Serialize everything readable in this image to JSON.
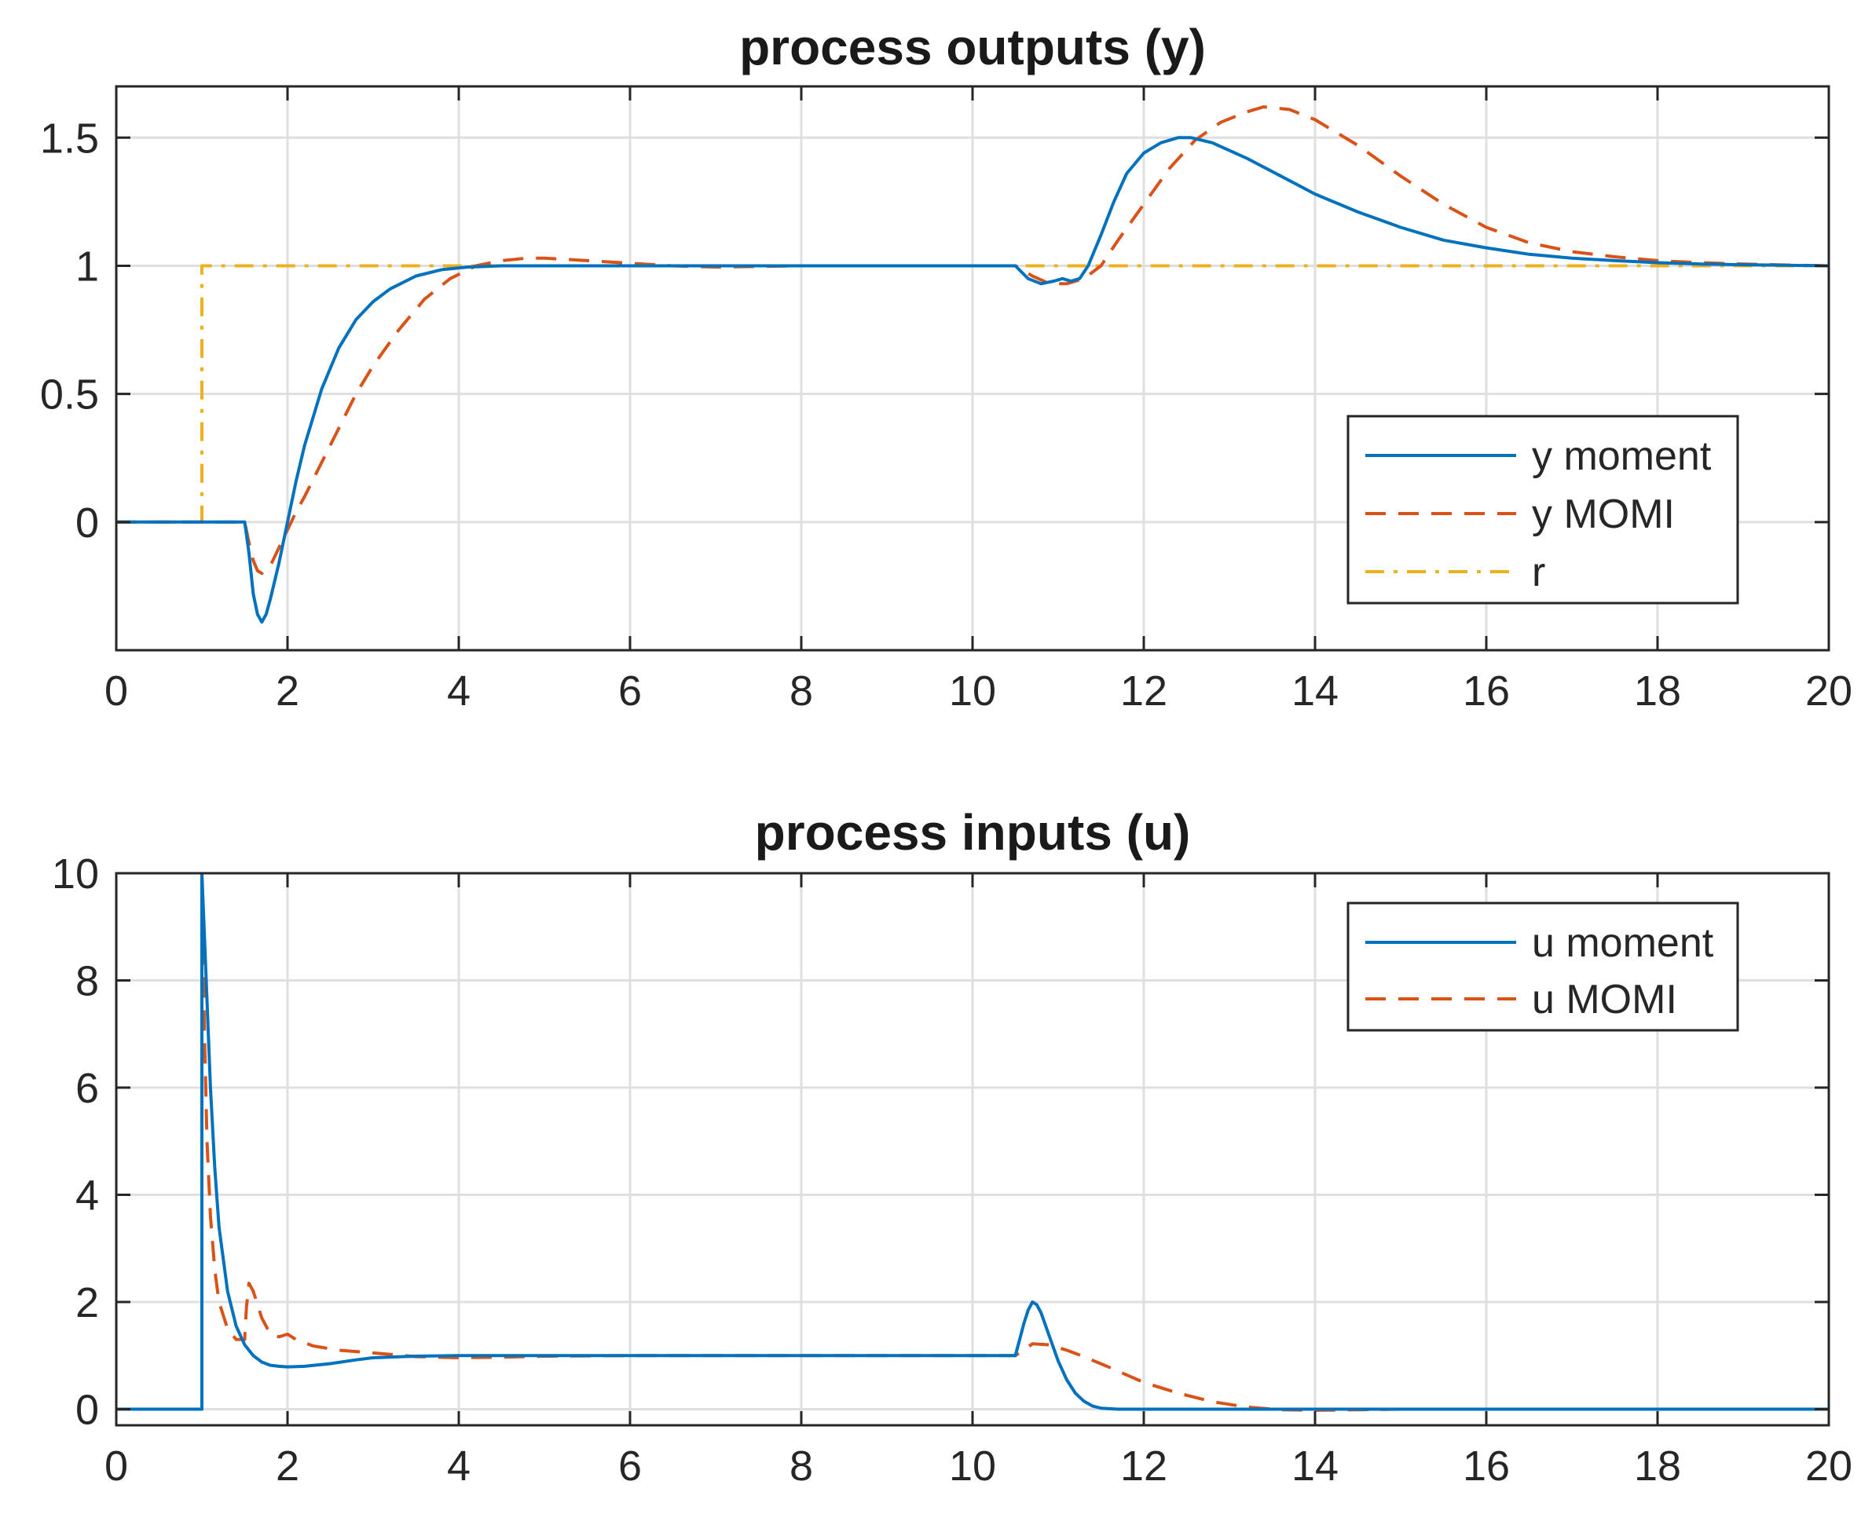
{
  "chart_data": [
    {
      "type": "line",
      "title": "process outputs (y)",
      "xlabel": "",
      "ylabel": "",
      "xlim": [
        0,
        20
      ],
      "ylim": [
        -0.5,
        1.7
      ],
      "xticks": [
        0,
        2,
        4,
        6,
        8,
        10,
        12,
        14,
        16,
        18,
        20
      ],
      "yticks": [
        0,
        0.5,
        1,
        1.5
      ],
      "grid": true,
      "legend_position": "right",
      "series": [
        {
          "name": "y moment",
          "color": "#0072BD",
          "style": "solid",
          "x": [
            0,
            1.5,
            1.55,
            1.6,
            1.65,
            1.7,
            1.75,
            1.8,
            1.9,
            2.0,
            2.1,
            2.2,
            2.4,
            2.6,
            2.8,
            3.0,
            3.2,
            3.5,
            3.8,
            4.1,
            4.5,
            5,
            6,
            7,
            8,
            9,
            10,
            10.5,
            10.65,
            10.8,
            10.95,
            11.05,
            11.15,
            11.25,
            11.35,
            11.5,
            11.65,
            11.8,
            12.0,
            12.2,
            12.4,
            12.55,
            12.8,
            13.2,
            13.6,
            14,
            14.5,
            15,
            15.5,
            16,
            16.5,
            17,
            17.5,
            18,
            18.5,
            19,
            19.5,
            20
          ],
          "y": [
            0,
            0,
            -0.12,
            -0.28,
            -0.36,
            -0.39,
            -0.36,
            -0.3,
            -0.16,
            0.0,
            0.16,
            0.3,
            0.52,
            0.68,
            0.79,
            0.86,
            0.91,
            0.96,
            0.985,
            0.995,
            1.0,
            1.0,
            1.0,
            1.0,
            1.0,
            1.0,
            1.0,
            1.0,
            0.95,
            0.93,
            0.94,
            0.95,
            0.94,
            0.95,
            1.0,
            1.12,
            1.25,
            1.36,
            1.44,
            1.48,
            1.5,
            1.5,
            1.48,
            1.42,
            1.35,
            1.28,
            1.21,
            1.15,
            1.1,
            1.07,
            1.045,
            1.03,
            1.02,
            1.012,
            1.007,
            1.004,
            1.002,
            1.0
          ]
        },
        {
          "name": "y MOMI",
          "color": "#D95319",
          "style": "dashed",
          "x": [
            0,
            1.5,
            1.55,
            1.6,
            1.65,
            1.7,
            1.8,
            1.9,
            2.0,
            2.1,
            2.2,
            2.5,
            2.8,
            3.0,
            3.3,
            3.6,
            3.9,
            4.2,
            4.5,
            4.8,
            5.0,
            5.5,
            6.0,
            6.5,
            7,
            8,
            9,
            10,
            10.5,
            10.7,
            10.9,
            11.1,
            11.3,
            11.5,
            11.7,
            12.0,
            12.3,
            12.6,
            12.9,
            13.2,
            13.4,
            13.7,
            14.0,
            14.5,
            15,
            15.5,
            16,
            16.5,
            17,
            17.5,
            18,
            18.5,
            19,
            19.5,
            20
          ],
          "y": [
            0,
            0,
            -0.08,
            -0.15,
            -0.19,
            -0.2,
            -0.17,
            -0.1,
            -0.03,
            0.04,
            0.1,
            0.3,
            0.5,
            0.61,
            0.75,
            0.87,
            0.95,
            1.0,
            1.02,
            1.03,
            1.03,
            1.02,
            1.01,
            1.0,
            0.995,
            1.0,
            1.0,
            1.0,
            1.0,
            0.96,
            0.93,
            0.93,
            0.95,
            1.0,
            1.1,
            1.24,
            1.38,
            1.49,
            1.56,
            1.6,
            1.62,
            1.61,
            1.57,
            1.47,
            1.35,
            1.24,
            1.15,
            1.09,
            1.055,
            1.035,
            1.02,
            1.012,
            1.007,
            1.003,
            1.0
          ]
        },
        {
          "name": "r",
          "color": "#EDB120",
          "style": "dashdot",
          "x": [
            0,
            1,
            1,
            20
          ],
          "y": [
            0,
            0,
            1,
            1
          ]
        }
      ]
    },
    {
      "type": "line",
      "title": "process inputs (u)",
      "xlabel": "",
      "ylabel": "",
      "xlim": [
        0,
        20
      ],
      "ylim": [
        -0.3,
        10
      ],
      "xticks": [
        0,
        2,
        4,
        6,
        8,
        10,
        12,
        14,
        16,
        18,
        20
      ],
      "yticks": [
        0,
        2,
        4,
        6,
        8,
        10
      ],
      "grid": true,
      "legend_position": "top-right",
      "series": [
        {
          "name": "u moment",
          "color": "#0072BD",
          "style": "solid",
          "x": [
            0,
            1,
            1.0,
            1.05,
            1.1,
            1.15,
            1.2,
            1.3,
            1.4,
            1.5,
            1.6,
            1.7,
            1.8,
            1.9,
            2.0,
            2.2,
            2.5,
            2.8,
            3.0,
            3.5,
            4,
            5,
            6,
            8,
            10,
            10.5,
            10.55,
            10.6,
            10.65,
            10.7,
            10.75,
            10.8,
            10.9,
            11.0,
            11.1,
            11.2,
            11.3,
            11.4,
            11.5,
            11.7,
            12,
            14,
            16,
            18,
            20
          ],
          "y": [
            0,
            0,
            10,
            8.0,
            6.0,
            4.5,
            3.4,
            2.2,
            1.55,
            1.2,
            1.0,
            0.88,
            0.82,
            0.8,
            0.79,
            0.8,
            0.85,
            0.92,
            0.96,
            0.99,
            1.0,
            1.0,
            1.0,
            1.0,
            1.0,
            1.0,
            1.3,
            1.6,
            1.85,
            2.0,
            1.95,
            1.8,
            1.35,
            0.9,
            0.55,
            0.3,
            0.15,
            0.06,
            0.02,
            0.0,
            0.0,
            0.0,
            0.0,
            0.0,
            0.0
          ]
        },
        {
          "name": "u MOMI",
          "color": "#D95319",
          "style": "dashed",
          "x": [
            0,
            1,
            1.0,
            1.03,
            1.06,
            1.1,
            1.15,
            1.2,
            1.3,
            1.4,
            1.5,
            1.52,
            1.55,
            1.6,
            1.7,
            1.8,
            1.9,
            2.0,
            2.1,
            2.3,
            2.6,
            3.0,
            3.5,
            4.0,
            4.5,
            5,
            6,
            8,
            10,
            10.5,
            10.7,
            10.9,
            11.1,
            11.3,
            11.6,
            12.0,
            12.4,
            12.8,
            13.2,
            13.6,
            14.0,
            14.5,
            15,
            16,
            18,
            20
          ],
          "y": [
            0,
            0,
            10,
            7.0,
            5.0,
            3.6,
            2.6,
            2.0,
            1.5,
            1.3,
            1.3,
            1.9,
            2.35,
            2.2,
            1.7,
            1.4,
            1.35,
            1.4,
            1.3,
            1.18,
            1.1,
            1.05,
            0.98,
            0.96,
            0.97,
            0.99,
            1.0,
            1.0,
            1.0,
            1.0,
            1.22,
            1.2,
            1.1,
            0.98,
            0.78,
            0.5,
            0.3,
            0.14,
            0.04,
            -0.01,
            -0.02,
            -0.01,
            0.0,
            0.0,
            0.0,
            0.0
          ]
        }
      ]
    }
  ]
}
